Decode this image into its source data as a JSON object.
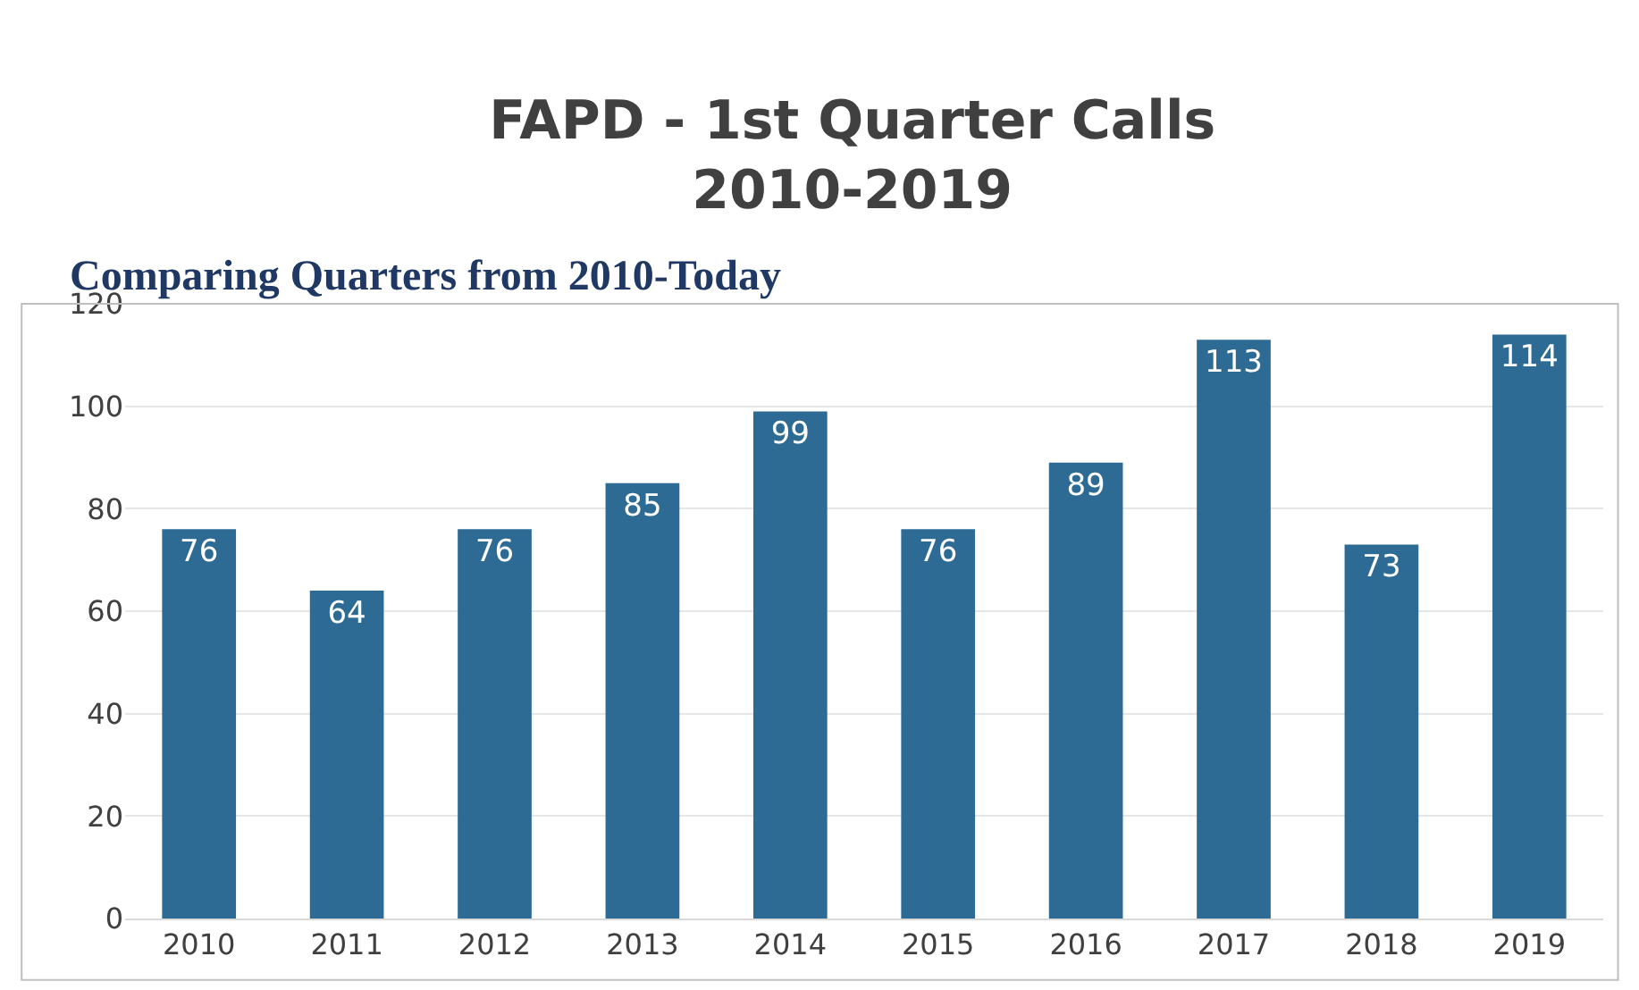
{
  "chart_data": {
    "type": "bar",
    "title": "FAPD - 1st Quarter Calls\n2010-2019",
    "annotations": [
      "Comparing Quarters from 2010-Today"
    ],
    "categories": [
      "2010",
      "2011",
      "2012",
      "2013",
      "2014",
      "2015",
      "2016",
      "2017",
      "2018",
      "2019"
    ],
    "values": [
      76,
      64,
      76,
      85,
      99,
      76,
      89,
      113,
      73,
      114
    ],
    "color": "#2e6b94",
    "ylim": [
      0,
      120
    ],
    "yticks": [
      0,
      20,
      40,
      60,
      80,
      100,
      120
    ],
    "grid": "y",
    "data_labels": true,
    "legend": false
  }
}
